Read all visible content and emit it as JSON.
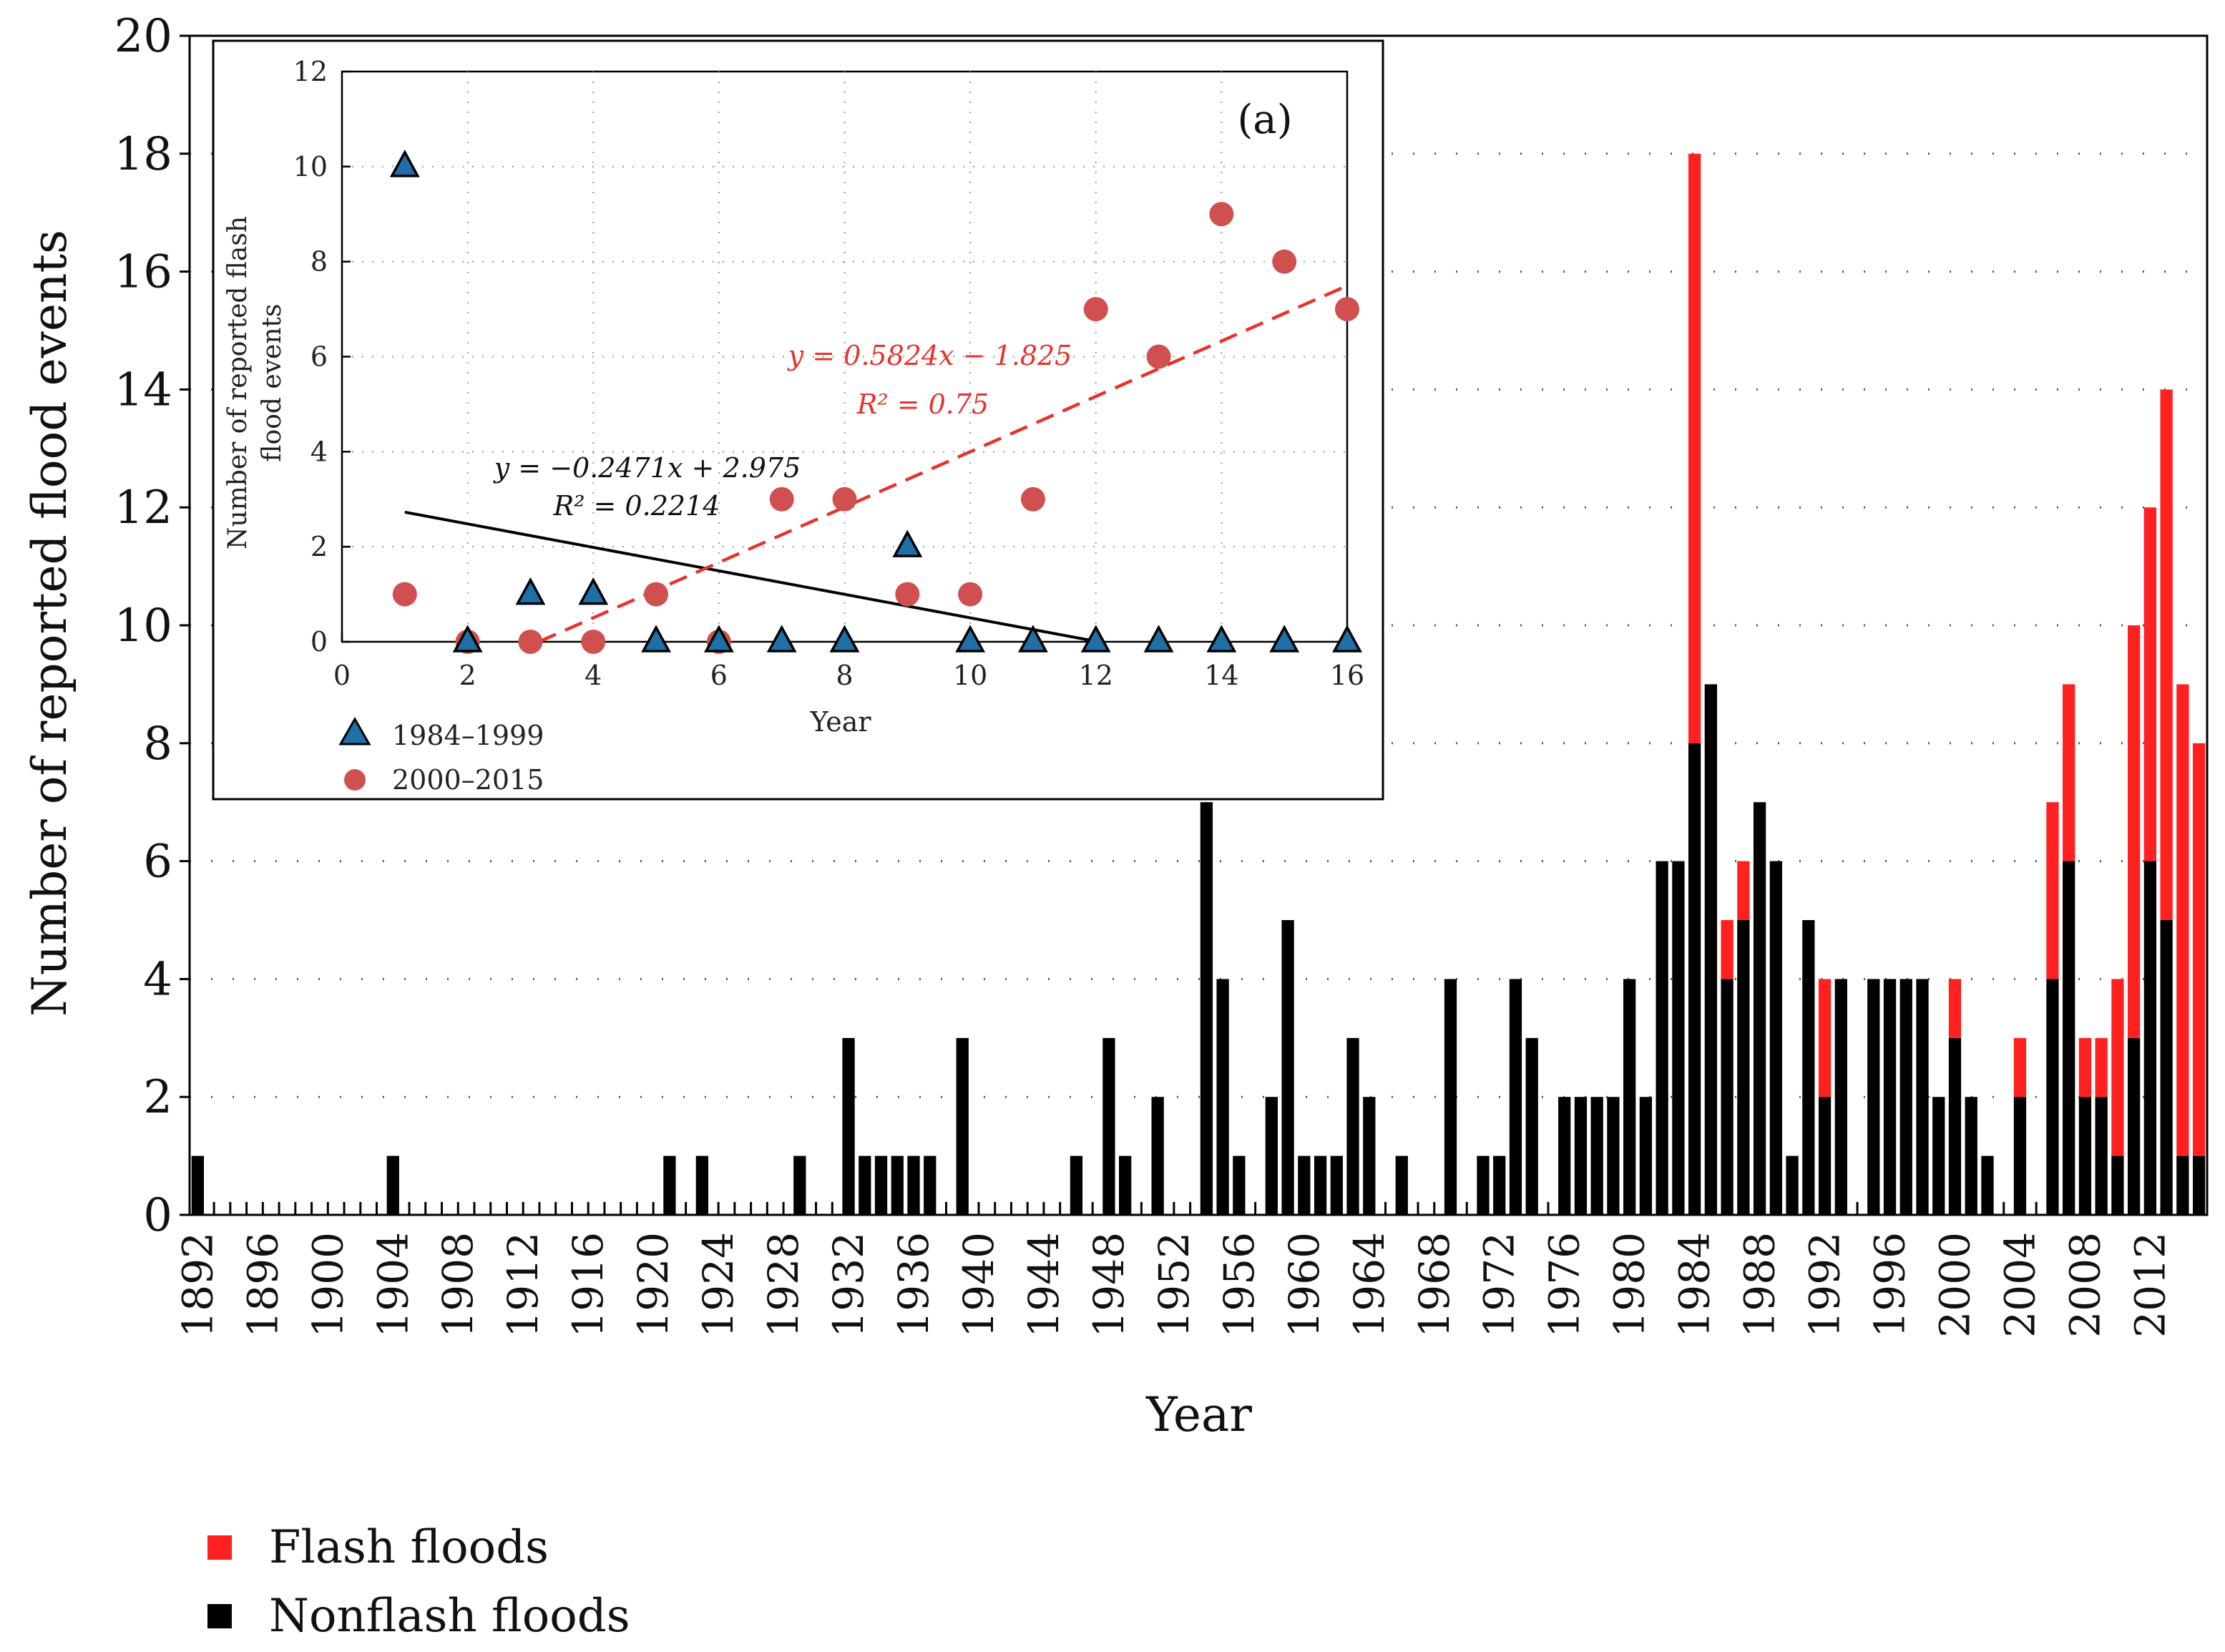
{
  "chart_data": [
    {
      "type": "bar",
      "stacked": true,
      "xlabel": "Year",
      "ylabel": "Number of reported flood events",
      "ylim": [
        0,
        20
      ],
      "yticks": [
        0,
        2,
        4,
        6,
        8,
        10,
        12,
        14,
        16,
        18,
        20
      ],
      "x_tick_labels": [
        "1892",
        "1896",
        "1900",
        "1904",
        "1908",
        "1912",
        "1916",
        "1920",
        "1924",
        "1928",
        "1932",
        "1936",
        "1940",
        "1944",
        "1948",
        "1952",
        "1956",
        "1960",
        "1964",
        "1968",
        "1972",
        "1976",
        "1980",
        "1984",
        "1988",
        "1992",
        "1996",
        "2000",
        "2004",
        "2008",
        "2012"
      ],
      "grid": "horizontal dotted",
      "year_range": [
        1892,
        2015
      ],
      "series": [
        {
          "name": "Nonflash floods",
          "color": "#000000",
          "points": [
            [
              1892,
              1
            ],
            [
              1904,
              1
            ],
            [
              1921,
              1
            ],
            [
              1923,
              1
            ],
            [
              1929,
              1
            ],
            [
              1932,
              3
            ],
            [
              1933,
              1
            ],
            [
              1934,
              1
            ],
            [
              1935,
              1
            ],
            [
              1936,
              1
            ],
            [
              1937,
              1
            ],
            [
              1939,
              3
            ],
            [
              1946,
              1
            ],
            [
              1948,
              3
            ],
            [
              1949,
              1
            ],
            [
              1951,
              2
            ],
            [
              1954,
              7
            ],
            [
              1955,
              4
            ],
            [
              1956,
              1
            ],
            [
              1958,
              2
            ],
            [
              1959,
              5
            ],
            [
              1960,
              1
            ],
            [
              1961,
              1
            ],
            [
              1962,
              1
            ],
            [
              1963,
              3
            ],
            [
              1964,
              2
            ],
            [
              1966,
              1
            ],
            [
              1969,
              4
            ],
            [
              1971,
              1
            ],
            [
              1972,
              1
            ],
            [
              1973,
              4
            ],
            [
              1974,
              3
            ],
            [
              1976,
              2
            ],
            [
              1977,
              2
            ],
            [
              1978,
              2
            ],
            [
              1979,
              2
            ],
            [
              1980,
              4
            ],
            [
              1981,
              2
            ],
            [
              1982,
              6
            ],
            [
              1983,
              6
            ],
            [
              1984,
              8
            ],
            [
              1985,
              9
            ],
            [
              1986,
              4
            ],
            [
              1987,
              5
            ],
            [
              1988,
              7
            ],
            [
              1989,
              6
            ],
            [
              1990,
              1
            ],
            [
              1991,
              5
            ],
            [
              1992,
              2
            ],
            [
              1993,
              4
            ],
            [
              1995,
              4
            ],
            [
              1996,
              4
            ],
            [
              1997,
              4
            ],
            [
              1998,
              4
            ],
            [
              1999,
              2
            ],
            [
              2000,
              3
            ],
            [
              2001,
              2
            ],
            [
              2002,
              1
            ],
            [
              2004,
              2
            ],
            [
              2006,
              4
            ],
            [
              2007,
              6
            ],
            [
              2008,
              2
            ],
            [
              2009,
              2
            ],
            [
              2010,
              1
            ],
            [
              2011,
              3
            ],
            [
              2012,
              6
            ],
            [
              2013,
              5
            ],
            [
              2014,
              1
            ],
            [
              2015,
              1
            ]
          ]
        },
        {
          "name": "Flash floods",
          "color": "#ff2020",
          "points": [
            [
              1984,
              10
            ],
            [
              1986,
              1
            ],
            [
              1987,
              1
            ],
            [
              1992,
              2
            ],
            [
              2000,
              1
            ],
            [
              2004,
              1
            ],
            [
              2006,
              3
            ],
            [
              2007,
              3
            ],
            [
              2008,
              1
            ],
            [
              2009,
              1
            ],
            [
              2010,
              3
            ],
            [
              2011,
              7
            ],
            [
              2012,
              6
            ],
            [
              2013,
              9
            ],
            [
              2014,
              8
            ],
            [
              2015,
              7
            ]
          ]
        }
      ],
      "legend": {
        "placement": "bottom-left"
      }
    },
    {
      "type": "scatter",
      "panel_label": "(a)",
      "xlabel": "Year",
      "ylabel": "Number of reported flash flood events",
      "xlim": [
        0,
        16
      ],
      "ylim": [
        0,
        12
      ],
      "xticks": [
        0,
        2,
        4,
        6,
        8,
        10,
        12,
        14,
        16
      ],
      "yticks": [
        0,
        2,
        4,
        6,
        8,
        10,
        12
      ],
      "series": [
        {
          "name": "1984–1999",
          "marker": "triangle",
          "color": "#1f6fa8",
          "x": [
            1,
            2,
            3,
            4,
            5,
            6,
            7,
            8,
            9,
            10,
            11,
            12,
            13,
            14,
            15,
            16
          ],
          "y": [
            10,
            0,
            1,
            1,
            0,
            0,
            0,
            0,
            2,
            0,
            0,
            0,
            0,
            0,
            0,
            0
          ]
        },
        {
          "name": "2000–2015",
          "marker": "circle",
          "color": "#d05050",
          "x": [
            1,
            2,
            3,
            4,
            5,
            6,
            7,
            8,
            9,
            10,
            11,
            12,
            13,
            14,
            15,
            16
          ],
          "y": [
            1,
            0,
            0,
            0,
            1,
            0,
            3,
            3,
            1,
            1,
            3,
            7,
            6,
            9,
            8,
            7
          ]
        }
      ],
      "fits": [
        {
          "series": "1984–1999",
          "slope": -0.2471,
          "intercept": 2.975,
          "equation": "y = −0.2471x + 2.975",
          "r2_label": "R² = 0.2214",
          "color": "#000000",
          "style": "solid"
        },
        {
          "series": "2000–2015",
          "slope": 0.5824,
          "intercept": -1.825,
          "equation": "y = 0.5824x − 1.825",
          "r2_label": "R² = 0.75",
          "color": "#e8322e",
          "style": "dashed"
        }
      ],
      "legend": {
        "placement": "bottom-left"
      }
    }
  ],
  "legend": [
    {
      "label": "Flash floods",
      "color": "#ff2020"
    },
    {
      "label": "Nonflash floods",
      "color": "#000000"
    }
  ]
}
